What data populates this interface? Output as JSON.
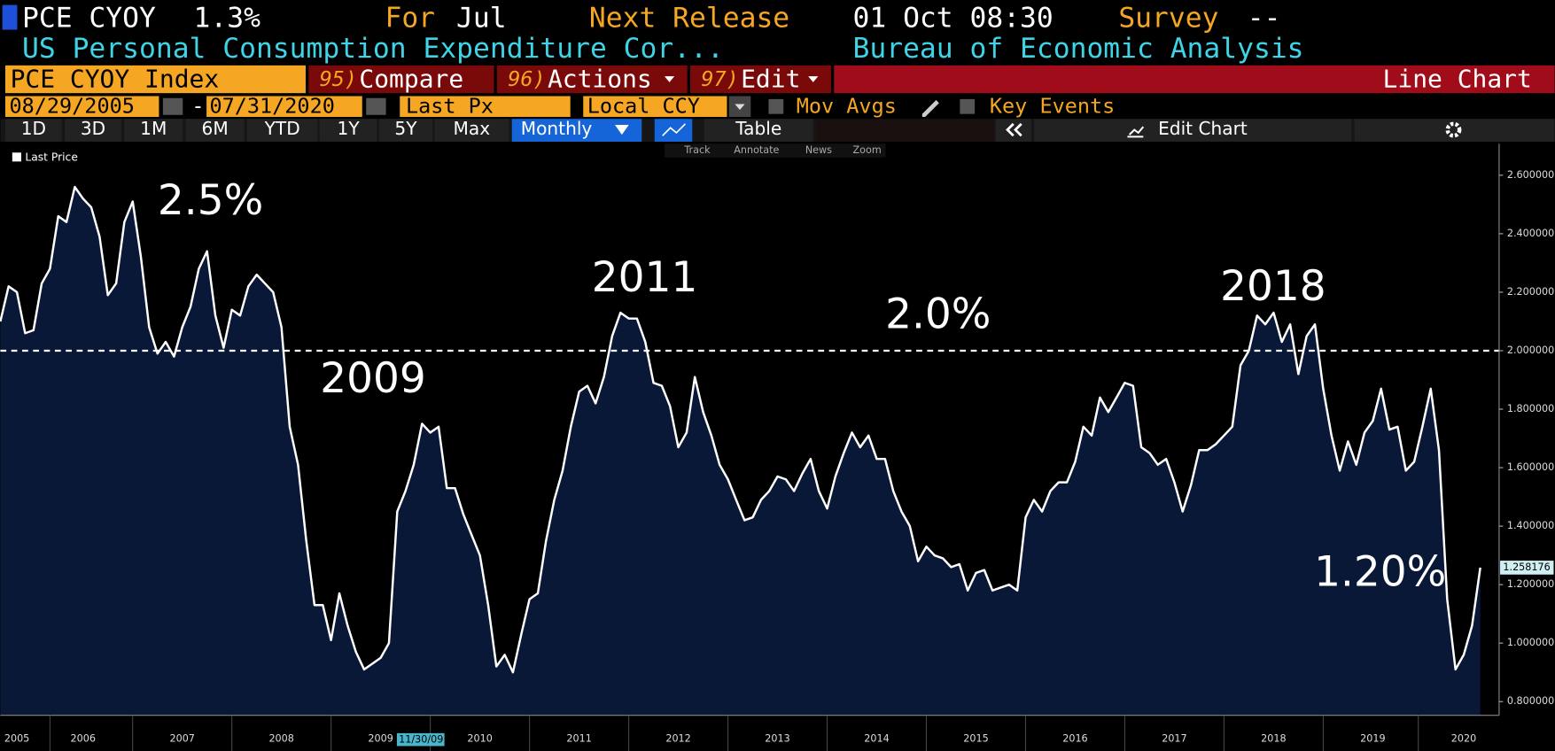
{
  "header": {
    "ticker": "PCE CYOY",
    "last": "1.3%",
    "for_label": "For",
    "for_value": "Jul",
    "release_label": "Next Release",
    "release_value": "01 Oct 08:30",
    "survey_label": "Survey",
    "survey_value": "--",
    "description": "US Personal Consumption Expenditure Cor...",
    "source": "Bureau of Economic Analysis"
  },
  "menu": {
    "security": "PCE CYOY Index",
    "compare": {
      "num": "95)",
      "label": "Compare"
    },
    "actions": {
      "num": "96)",
      "label": "Actions"
    },
    "edit": {
      "num": "97)",
      "label": "Edit"
    },
    "chart_type": "Line Chart"
  },
  "controls": {
    "start_date": "08/29/2005",
    "dash": "-",
    "end_date": "07/31/2020",
    "field": "Last Px",
    "currency": "Local CCY",
    "mov_avgs": "Mov Avgs",
    "key_events": "Key Events"
  },
  "toolbar": {
    "ranges": [
      "1D",
      "3D",
      "1M",
      "6M",
      "YTD",
      "1Y",
      "5Y",
      "Max"
    ],
    "frequency": "Monthly",
    "table": "Table",
    "edit_chart": "Edit Chart",
    "tools": [
      "Track",
      "Annotate",
      "News",
      "Zoom"
    ]
  },
  "chart_data": {
    "type": "line",
    "legend": "top-left",
    "cursor_label": "11/30/09",
    "reference_line": 2.0,
    "annotations": [
      "2.5%",
      "2009",
      "2011",
      "2.0%",
      "2018",
      "1.20%"
    ],
    "ylim": [
      0.753,
      2.708
    ],
    "yticks": [
      {
        "value": 0.8,
        "label": "0.800000"
      },
      {
        "value": 1.0,
        "label": "1.000000"
      },
      {
        "value": 1.2,
        "label": "1.200000"
      },
      {
        "value": 1.4,
        "label": "1.400000"
      },
      {
        "value": 1.6,
        "label": "1.600000"
      },
      {
        "value": 1.8,
        "label": "1.800000"
      },
      {
        "value": 2.0,
        "label": "2.000000"
      },
      {
        "value": 2.2,
        "label": "2.200000"
      },
      {
        "value": 2.4,
        "label": "2.400000"
      },
      {
        "value": 2.6,
        "label": "2.600000"
      }
    ],
    "categories": [
      null,
      null,
      "2005",
      null,
      null,
      null,
      null,
      null,
      null,
      null,
      "2006",
      null,
      null,
      null,
      null,
      null,
      null,
      null,
      null,
      null,
      null,
      null,
      "2007",
      null,
      null,
      null,
      null,
      null,
      null,
      null,
      null,
      null,
      null,
      null,
      "2008",
      null,
      null,
      null,
      null,
      null,
      null,
      null,
      null,
      null,
      null,
      null,
      "2009",
      null,
      null,
      null,
      null,
      null,
      null,
      null,
      null,
      null,
      null,
      null,
      "2010",
      null,
      null,
      null,
      null,
      null,
      null,
      null,
      null,
      null,
      null,
      null,
      "2011",
      null,
      null,
      null,
      null,
      null,
      null,
      null,
      null,
      null,
      null,
      null,
      "2012",
      null,
      null,
      null,
      null,
      null,
      null,
      null,
      null,
      null,
      null,
      null,
      "2013",
      null,
      null,
      null,
      null,
      null,
      null,
      null,
      null,
      null,
      null,
      null,
      "2014",
      null,
      null,
      null,
      null,
      null,
      null,
      null,
      null,
      null,
      null,
      null,
      "2015",
      null,
      null,
      null,
      null,
      null,
      null,
      null,
      null,
      null,
      null,
      null,
      "2016",
      null,
      null,
      null,
      null,
      null,
      null,
      null,
      null,
      null,
      null,
      null,
      "2017",
      null,
      null,
      null,
      null,
      null,
      null,
      null,
      null,
      null,
      null,
      null,
      "2018",
      null,
      null,
      null,
      null,
      null,
      null,
      null,
      null,
      null,
      null,
      null,
      "2019",
      null,
      null,
      null,
      null,
      null,
      null,
      null,
      null,
      null,
      null,
      "2020",
      null,
      null
    ],
    "series": [
      {
        "name": "Last Price",
        "color": "#ffffff",
        "fill": "#0a1838",
        "values": [
          2.1,
          2.22,
          2.2,
          2.06,
          2.07,
          2.23,
          2.28,
          2.46,
          2.44,
          2.56,
          2.52,
          2.49,
          2.39,
          2.19,
          2.23,
          2.44,
          2.51,
          2.32,
          2.08,
          1.99,
          2.03,
          1.98,
          2.08,
          2.15,
          2.28,
          2.34,
          2.12,
          2.01,
          2.14,
          2.12,
          2.22,
          2.26,
          2.23,
          2.2,
          2.08,
          1.74,
          1.61,
          1.35,
          1.13,
          1.13,
          1.01,
          1.17,
          1.06,
          0.97,
          0.91,
          0.93,
          0.95,
          1.0,
          1.45,
          1.52,
          1.61,
          1.75,
          1.72,
          1.74,
          1.53,
          1.53,
          1.44,
          1.37,
          1.3,
          1.13,
          0.92,
          0.96,
          0.9,
          1.03,
          1.15,
          1.17,
          1.35,
          1.49,
          1.59,
          1.74,
          1.86,
          1.88,
          1.82,
          1.91,
          2.05,
          2.13,
          2.11,
          2.11,
          2.03,
          1.89,
          1.88,
          1.81,
          1.67,
          1.72,
          1.91,
          1.79,
          1.71,
          1.61,
          1.56,
          1.49,
          1.42,
          1.43,
          1.49,
          1.52,
          1.57,
          1.56,
          1.52,
          1.58,
          1.63,
          1.52,
          1.46,
          1.57,
          1.65,
          1.72,
          1.67,
          1.71,
          1.63,
          1.63,
          1.52,
          1.45,
          1.4,
          1.28,
          1.33,
          1.3,
          1.29,
          1.26,
          1.27,
          1.18,
          1.24,
          1.25,
          1.18,
          1.19,
          1.2,
          1.18,
          1.43,
          1.49,
          1.45,
          1.52,
          1.55,
          1.55,
          1.62,
          1.74,
          1.71,
          1.84,
          1.79,
          1.84,
          1.89,
          1.88,
          1.67,
          1.65,
          1.61,
          1.63,
          1.55,
          1.45,
          1.54,
          1.66,
          1.66,
          1.68,
          1.71,
          1.74,
          1.95,
          2.0,
          2.12,
          2.09,
          2.13,
          2.03,
          2.09,
          1.92,
          2.05,
          2.09,
          1.87,
          1.71,
          1.59,
          1.69,
          1.61,
          1.72,
          1.76,
          1.87,
          1.73,
          1.74,
          1.59,
          1.62,
          1.74,
          1.87,
          1.66,
          1.15,
          0.91,
          0.96,
          1.06,
          1.258176
        ]
      }
    ]
  }
}
